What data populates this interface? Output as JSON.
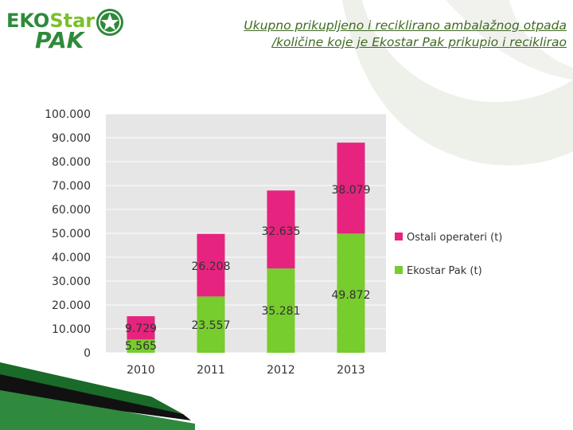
{
  "title": {
    "line1": "Ukupno prikupljeno i reciklirano ambalažnog otpada",
    "line2": "/količine koje je Ekostar Pak prikupio i reciklirao"
  },
  "logo": {
    "line1": "EKOStar",
    "line2": "PAK",
    "colors": {
      "eko": "#2e8a3a",
      "star": "#7bbf2a",
      "pak": "#2e8a3a"
    }
  },
  "chart_data": {
    "type": "bar",
    "stacked": true,
    "categories": [
      "2010",
      "2011",
      "2012",
      "2013"
    ],
    "series": [
      {
        "name": "Ekostar Pak (t)",
        "values": [
          5565,
          23557,
          35281,
          49872
        ],
        "labels": [
          "5.565",
          "23.557",
          "35.281",
          "49.872"
        ],
        "color": "#77cc2e"
      },
      {
        "name": "Ostali operateri (t)",
        "values": [
          9729,
          26208,
          32635,
          38079
        ],
        "labels": [
          "9.729",
          "26.208",
          "32.635",
          "38.079"
        ],
        "color": "#e6237e"
      }
    ],
    "ylim": [
      0,
      100000
    ],
    "yticks": [
      0,
      10000,
      20000,
      30000,
      40000,
      50000,
      60000,
      70000,
      80000,
      90000,
      100000
    ],
    "ytick_labels": [
      "0",
      "10.000",
      "20.000",
      "30.000",
      "40.000",
      "50.000",
      "60.000",
      "70.000",
      "80.000",
      "90.000",
      "100.000"
    ],
    "grid": true,
    "legend_position": "right",
    "legend_order": [
      "Ostali operateri (t)",
      "Ekostar Pak (t)"
    ],
    "plot_background": "#e6e6e6"
  }
}
